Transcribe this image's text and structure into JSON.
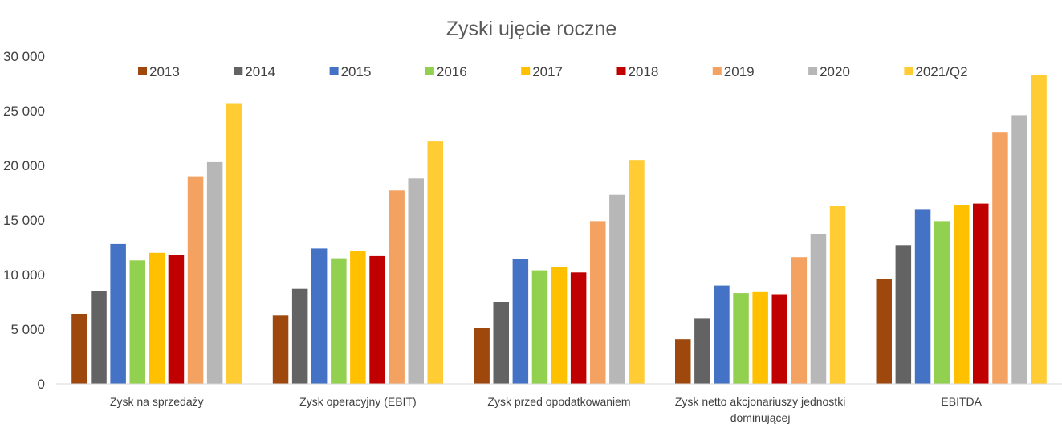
{
  "chart_data": {
    "type": "bar",
    "title": "Zyski ujęcie roczne",
    "xlabel": "",
    "ylabel": "",
    "ylim": [
      0,
      30000
    ],
    "yticks": [
      0,
      5000,
      10000,
      15000,
      20000,
      25000,
      30000
    ],
    "ytick_labels": [
      "0",
      "5 000",
      "10 000",
      "15 000",
      "20 000",
      "25 000",
      "30 000"
    ],
    "grid": false,
    "legend_position": "top",
    "categories": [
      "Zysk na sprzedaży",
      "Zysk operacyjny (EBIT)",
      "Zysk przed opodatkowaniem",
      "Zysk netto akcjonariuszy jednostki dominującej",
      "EBITDA"
    ],
    "category_lines": [
      [
        "Zysk na sprzedaży"
      ],
      [
        "Zysk operacyjny (EBIT)"
      ],
      [
        "Zysk przed opodatkowaniem"
      ],
      [
        "Zysk netto akcjonariuszy jednostki",
        "dominującej"
      ],
      [
        "EBITDA"
      ]
    ],
    "series": [
      {
        "name": "2013",
        "color": "#9E480E",
        "values": [
          6400,
          6300,
          5100,
          4100,
          9600
        ]
      },
      {
        "name": "2014",
        "color": "#636363",
        "values": [
          8500,
          8700,
          7500,
          6000,
          12700
        ]
      },
      {
        "name": "2015",
        "color": "#4472C4",
        "values": [
          12800,
          12400,
          11400,
          9000,
          16000
        ]
      },
      {
        "name": "2016",
        "color": "#92D050",
        "values": [
          11300,
          11500,
          10400,
          8300,
          14900
        ]
      },
      {
        "name": "2017",
        "color": "#FFC000",
        "values": [
          12000,
          12200,
          10700,
          8400,
          16400
        ]
      },
      {
        "name": "2018",
        "color": "#C00000",
        "values": [
          11800,
          11700,
          10200,
          8200,
          16500
        ]
      },
      {
        "name": "2019",
        "color": "#F4A261",
        "values": [
          19000,
          17700,
          14900,
          11600,
          23000
        ]
      },
      {
        "name": "2020",
        "color": "#B7B7B7",
        "values": [
          20300,
          18800,
          17300,
          13700,
          24600
        ]
      },
      {
        "name": "2021/Q2",
        "color": "#FFCC33",
        "values": [
          25700,
          22200,
          20500,
          16300,
          28300
        ]
      }
    ]
  }
}
